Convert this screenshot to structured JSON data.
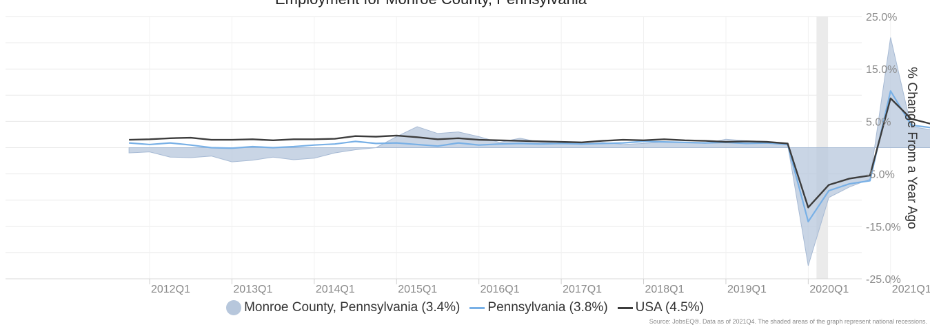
{
  "chart_data": {
    "type": "area",
    "title": "Employment for Monroe County, Pennsylvania",
    "ylabel": "% Change From a Year Ago",
    "ylim": [
      -25,
      25
    ],
    "y_ticks": [
      "25.0%",
      "15.0%",
      "5.0%",
      "-5.0%",
      "-15.0%",
      "-25.0%"
    ],
    "x_tick_labels": [
      "2012Q1",
      "2013Q1",
      "2014Q1",
      "2015Q1",
      "2016Q1",
      "2017Q1",
      "2018Q1",
      "2019Q1",
      "2020Q1",
      "2021Q1"
    ],
    "x": [
      "2011Q4",
      "2012Q1",
      "2012Q2",
      "2012Q3",
      "2012Q4",
      "2013Q1",
      "2013Q2",
      "2013Q3",
      "2013Q4",
      "2014Q1",
      "2014Q2",
      "2014Q3",
      "2014Q4",
      "2015Q1",
      "2015Q2",
      "2015Q3",
      "2015Q4",
      "2016Q1",
      "2016Q2",
      "2016Q3",
      "2016Q4",
      "2017Q1",
      "2017Q2",
      "2017Q3",
      "2017Q4",
      "2018Q1",
      "2018Q2",
      "2018Q3",
      "2018Q4",
      "2019Q1",
      "2019Q2",
      "2019Q3",
      "2019Q4",
      "2020Q1",
      "2020Q2",
      "2020Q3",
      "2020Q4",
      "2021Q1",
      "2021Q2",
      "2021Q3"
    ],
    "recession": {
      "start": "2020Q1",
      "end": "2020Q2"
    },
    "grid": true,
    "legend_position": "bottom",
    "series": [
      {
        "name": "Monroe County, Pennsylvania (3.4%)",
        "kind": "area",
        "color": "#b7c7dc",
        "values": [
          -1.0,
          -0.8,
          -1.8,
          -1.9,
          -1.6,
          -2.7,
          -2.4,
          -1.8,
          -2.3,
          -2.0,
          -1.0,
          -0.4,
          0,
          2.1,
          4.0,
          2.7,
          3.0,
          2.1,
          1.0,
          1.8,
          1.0,
          0.8,
          0.6,
          1.0,
          0.6,
          0.8,
          1.1,
          1.0,
          0.8,
          1.6,
          1.3,
          1.2,
          0.6,
          -22.5,
          -9.5,
          -7.5,
          -6.0,
          21.0,
          4.0,
          3.4
        ]
      },
      {
        "name": "Pennsylvania (3.8%)",
        "kind": "line",
        "color": "#78b0e6",
        "values": [
          0.9,
          0.6,
          0.9,
          0.5,
          0.0,
          -0.1,
          0.2,
          0.0,
          0.2,
          0.5,
          0.7,
          1.2,
          0.8,
          0.9,
          0.6,
          0.3,
          0.9,
          0.5,
          0.7,
          0.8,
          0.7,
          0.8,
          0.7,
          0.8,
          0.9,
          1.2,
          1.1,
          1.0,
          0.9,
          1.0,
          0.8,
          0.9,
          0.6,
          -14.1,
          -8.2,
          -6.9,
          -6.3,
          10.8,
          4.3,
          3.8
        ]
      },
      {
        "name": "USA (4.5%)",
        "kind": "line",
        "color": "#3c3c3c",
        "values": [
          1.5,
          1.6,
          1.8,
          1.9,
          1.5,
          1.5,
          1.6,
          1.4,
          1.6,
          1.6,
          1.7,
          2.2,
          2.1,
          2.3,
          2.0,
          1.6,
          1.8,
          1.5,
          1.4,
          1.3,
          1.2,
          1.1,
          1.0,
          1.3,
          1.5,
          1.4,
          1.6,
          1.4,
          1.3,
          1.1,
          1.2,
          1.1,
          0.8,
          -11.4,
          -7.1,
          -5.9,
          -5.3,
          9.4,
          5.5,
          4.5
        ]
      }
    ]
  },
  "legend": {
    "monroe": "Monroe County, Pennsylvania (3.4%)",
    "pennsylvania": "Pennsylvania (3.8%)",
    "usa": "USA (4.5%)"
  },
  "source": "Source: JobsEQ®. Data as of 2021Q4. The shaded areas of the graph represent national recessions."
}
